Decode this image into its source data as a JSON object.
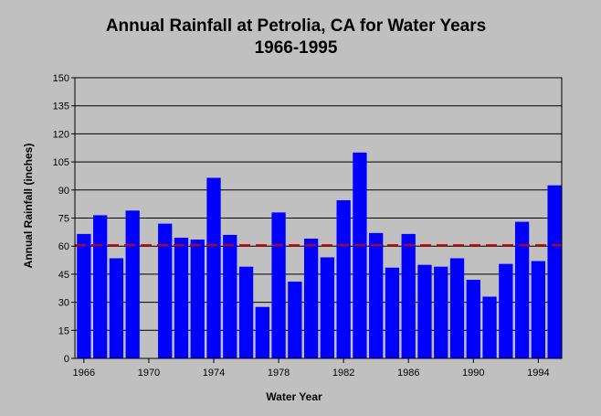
{
  "chart_data": {
    "type": "bar",
    "title": "Annual Rainfall at Petrolia, CA for Water Years",
    "subtitle": "1966-1995",
    "xlabel": "Water Year",
    "ylabel": "Annual Rainfall (inches)",
    "ylim": [
      0,
      150
    ],
    "yticks": [
      0,
      15,
      30,
      45,
      60,
      75,
      90,
      105,
      120,
      135,
      150
    ],
    "xtick_labels": [
      "1966",
      "1970",
      "1974",
      "1978",
      "1982",
      "1986",
      "1990",
      "1994"
    ],
    "categories": [
      "1966",
      "1967",
      "1968",
      "1969",
      "1970",
      "1971",
      "1972",
      "1973",
      "1974",
      "1975",
      "1976",
      "1977",
      "1978",
      "1979",
      "1980",
      "1981",
      "1982",
      "1983",
      "1984",
      "1985",
      "1986",
      "1987",
      "1988",
      "1989",
      "1990",
      "1991",
      "1992",
      "1993",
      "1994",
      "1995"
    ],
    "values": [
      66.5,
      76.5,
      53.5,
      79,
      0,
      72,
      64.5,
      63.5,
      96.5,
      66,
      49,
      27.5,
      78,
      41,
      64,
      54,
      84.5,
      110,
      67,
      48.5,
      66.5,
      50,
      49,
      53.5,
      42,
      33,
      50.5,
      73,
      52,
      92.5
    ],
    "mean_line": 60.5,
    "grid": true,
    "colors": {
      "bar": "#0000ff",
      "mean_line": "#cc0000",
      "plot_background": "#c0c0c0",
      "gridline": "#000000"
    }
  }
}
